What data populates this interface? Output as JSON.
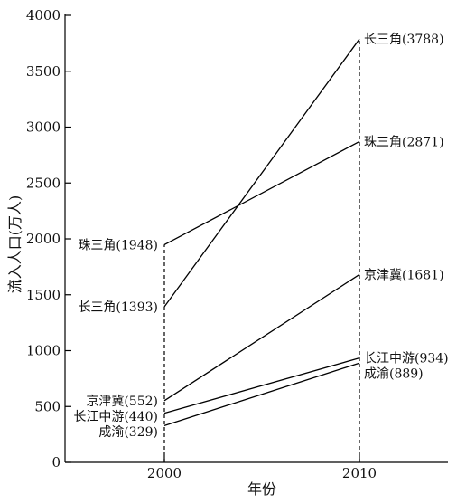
{
  "chart_data": {
    "type": "line",
    "xlabel": "年份",
    "ylabel": "流入人口(万人)",
    "x": [
      2000,
      2010
    ],
    "x_ticks": [
      "2000",
      "2010"
    ],
    "ylim": [
      0,
      4000
    ],
    "y_ticks": [
      "0",
      "500",
      "1000",
      "1500",
      "2000",
      "2500",
      "3000",
      "3500",
      "4000"
    ],
    "grid": false,
    "series": [
      {
        "name": "长三角",
        "values": [
          1393,
          3788
        ],
        "labels": [
          "长三角(1393)",
          "长三角(3788)"
        ]
      },
      {
        "name": "珠三角",
        "values": [
          1948,
          2871
        ],
        "labels": [
          "珠三角(1948)",
          "珠三角(2871)"
        ]
      },
      {
        "name": "京津冀",
        "values": [
          552,
          1681
        ],
        "labels": [
          "京津冀(552)",
          "京津冀(1681)"
        ]
      },
      {
        "name": "长江中游",
        "values": [
          440,
          934
        ],
        "labels": [
          "长江中游(440)",
          "长江中游(934)"
        ]
      },
      {
        "name": "成渝",
        "values": [
          329,
          889
        ],
        "labels": [
          "成渝(329)",
          "成渝(889)"
        ]
      }
    ],
    "line_color": "#000000"
  }
}
